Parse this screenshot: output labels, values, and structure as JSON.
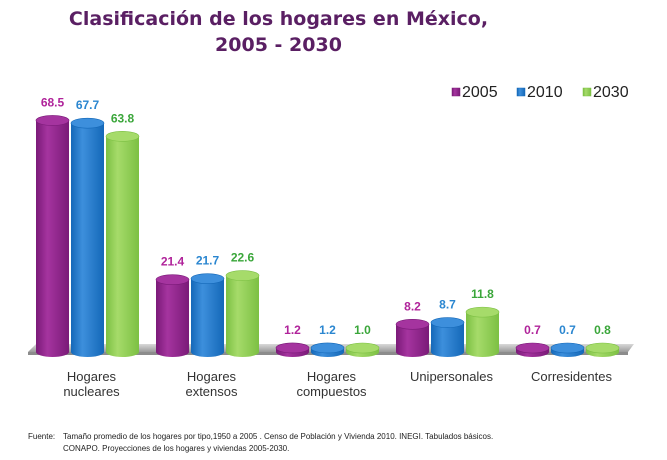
{
  "chart_data": {
    "type": "bar",
    "title_line1": "Clasificación de los hogares en México,",
    "title_line2": "2005 - 2030",
    "categories": [
      [
        "Hogares",
        "nucleares"
      ],
      [
        "Hogares",
        "extensos"
      ],
      [
        "Hogares",
        "compuestos"
      ],
      [
        "Unipersonales"
      ],
      [
        "Corresidentes"
      ]
    ],
    "series": [
      {
        "name": "2005",
        "color": "#7a1a78",
        "light": "#a5349f",
        "label_color": "#b0239a",
        "values": [
          68.5,
          21.4,
          1.2,
          8.2,
          0.7
        ]
      },
      {
        "name": "2010",
        "color": "#1468b8",
        "light": "#3d8fdc",
        "label_color": "#2a86d0",
        "values": [
          67.7,
          21.7,
          1.2,
          8.7,
          0.7
        ]
      },
      {
        "name": "2030",
        "color": "#7cc043",
        "light": "#a6db6a",
        "label_color": "#3aa63a",
        "values": [
          63.8,
          22.6,
          1.0,
          11.8,
          0.8
        ]
      }
    ],
    "value_labels": [
      [
        "68.5",
        "21.4",
        "1.2",
        "8.2",
        "0.7"
      ],
      [
        "67.7",
        "21.7",
        "1.2",
        "8.7",
        "0.7"
      ],
      [
        "63.8",
        "22.6",
        "1.0",
        "11.8",
        "0.8"
      ]
    ],
    "legend_position": "top-right",
    "grid": false
  },
  "footer": {
    "label": "Fuente:",
    "line1": "Tamaño promedio de los hogares por tipo,1950 a 2005 . Censo de Población y Vivienda 2010. INEGI. Tabulados básicos.",
    "line2": "CONAPO. Proyecciones de los hogares y viviendas 2005-2030."
  }
}
